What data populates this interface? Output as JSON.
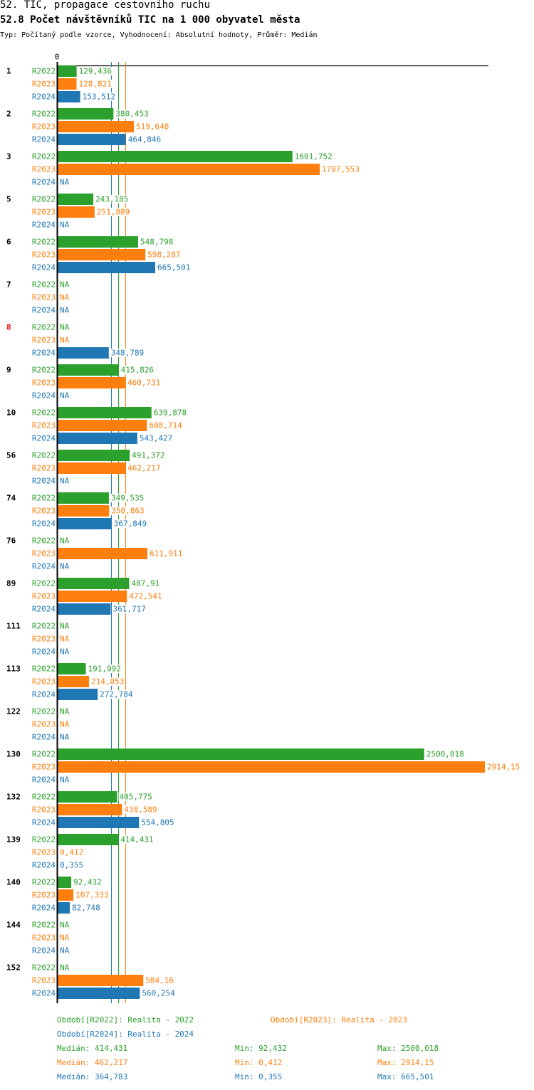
{
  "header": {
    "title": "52. TIC, propagace cestovního ruchu",
    "subtitle": "52.8 Počet návštěvníků TIC na 1 000 obyvatel města",
    "meta": "Typ: Počítaný podle vzorce, Vyhodnocení: Absolutní hodnoty, Průměr: Medián"
  },
  "chart_data": {
    "type": "bar",
    "orientation": "horizontal",
    "title": "52.8 Počet návštěvníků TIC na 1 000 obyvatel města",
    "xlabel": "",
    "ylabel": "",
    "x_tick_labels": [
      "0"
    ],
    "xlim": [
      0,
      2914.15
    ],
    "na_label": "NA",
    "decimal_separator": ",",
    "categories": [
      "1",
      "2",
      "3",
      "5",
      "6",
      "7",
      "8",
      "9",
      "10",
      "56",
      "74",
      "76",
      "89",
      "111",
      "113",
      "122",
      "130",
      "132",
      "139",
      "140",
      "144",
      "152"
    ],
    "highlighted_categories": [
      "8"
    ],
    "highlight_color": "#ff0000",
    "series": [
      {
        "name": "R2022",
        "color": "#2ca02c",
        "values": [
          129.436,
          380.453,
          1601.752,
          243.185,
          548.798,
          null,
          null,
          415.826,
          639.878,
          491.372,
          349.535,
          null,
          487.91,
          null,
          191.992,
          null,
          2500.018,
          405.775,
          414.431,
          92.432,
          null,
          null
        ],
        "labels": [
          "129,436",
          "380,453",
          "1601,752",
          "243,185",
          "548,798",
          "NA",
          "NA",
          "415,826",
          "639,878",
          "491,372",
          "349,535",
          "NA",
          "487,91",
          "NA",
          "191,992",
          "NA",
          "2500,018",
          "405,775",
          "414,431",
          "92,432",
          "NA",
          "NA"
        ]
      },
      {
        "name": "R2023",
        "color": "#ff7f0e",
        "values": [
          128.821,
          519.648,
          1787.553,
          251.889,
          598.287,
          null,
          null,
          460.731,
          608.714,
          462.217,
          350.863,
          611.911,
          472.541,
          null,
          214.053,
          null,
          2914.15,
          438.589,
          0.412,
          107.333,
          null,
          584.16
        ],
        "labels": [
          "128,821",
          "519,648",
          "1787,553",
          "251,889",
          "598,287",
          "NA",
          "NA",
          "460,731",
          "608,714",
          "462,217",
          "350,863",
          "611,911",
          "472,541",
          "NA",
          "214,053",
          "NA",
          "2914,15",
          "438,589",
          "0,412",
          "107,333",
          "NA",
          "584,16"
        ]
      },
      {
        "name": "R2024",
        "color": "#1f77b4",
        "values": [
          153.512,
          464.846,
          null,
          null,
          665.501,
          null,
          348.789,
          null,
          543.427,
          null,
          367.849,
          null,
          361.717,
          null,
          272.784,
          null,
          null,
          554.805,
          0.355,
          82.748,
          null,
          560.254
        ],
        "labels": [
          "153,512",
          "464,846",
          "NA",
          "NA",
          "665,501",
          "NA",
          "348,789",
          "NA",
          "543,427",
          "NA",
          "367,849",
          "NA",
          "361,717",
          "NA",
          "272,784",
          "NA",
          "NA",
          "554,805",
          "0,355",
          "82,748",
          "NA",
          "560,254"
        ]
      }
    ],
    "median_lines": [
      {
        "series": "R2024",
        "value": 364.783,
        "color": "#1f77b4"
      },
      {
        "series": "R2022",
        "value": 414.431,
        "color": "#2ca02c"
      },
      {
        "series": "R2023",
        "value": 462.217,
        "color": "#ff7f0e"
      }
    ],
    "legend": [
      {
        "text": "Období[R2022]: Realita - 2022",
        "color": "#2ca02c"
      },
      {
        "text": "Období[R2023]: Realita - 2023",
        "color": "#ff7f0e"
      },
      {
        "text": "Období[R2024]: Realita - 2024",
        "color": "#1f77b4"
      }
    ],
    "legend_position": "bottom",
    "stats": [
      {
        "median": "Medián: 414,431",
        "min": "Min: 92,432",
        "max": "Max: 2500,018",
        "color": "#2ca02c"
      },
      {
        "median": "Medián: 462,217",
        "min": "Min: 0,412",
        "max": "Max: 2914,15",
        "color": "#ff7f0e"
      },
      {
        "median": "Medián: 364,783",
        "min": "Min: 0,355",
        "max": "Max: 665,501",
        "color": "#1f77b4"
      }
    ],
    "grid": false
  }
}
